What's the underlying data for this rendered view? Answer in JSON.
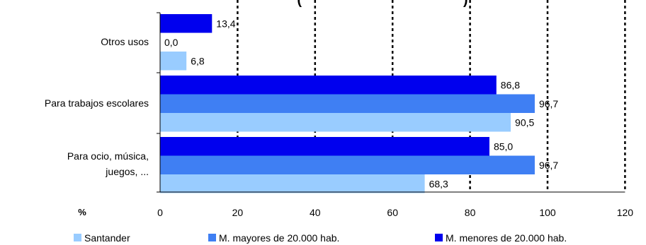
{
  "chart_data": {
    "type": "bar",
    "orientation": "horizontal",
    "title": "(                                         )",
    "categories": [
      "Otros usos",
      "Para trabajos escolares",
      "Para ocio, música, juegos, ..."
    ],
    "category_lines": [
      [
        "Otros usos"
      ],
      [
        "Para trabajos escolares"
      ],
      [
        "Para ocio, música,",
        "juegos, ..."
      ]
    ],
    "series": [
      {
        "name": "M. menores de 20.000 hab.",
        "color": "#0000ee",
        "values": [
          13.4,
          86.8,
          85.0
        ],
        "labels": [
          "13,4",
          "86,8",
          "85,0"
        ]
      },
      {
        "name": "M. mayores de 20.000 hab.",
        "color": "#3f7ff3",
        "values": [
          0.0,
          96.7,
          96.7
        ],
        "labels": [
          "0,0",
          "96,7",
          "96,7"
        ]
      },
      {
        "name": "Santander",
        "color": "#99ccff",
        "values": [
          6.8,
          90.5,
          68.3
        ],
        "labels": [
          "6,8",
          "90,5",
          "68,3"
        ]
      }
    ],
    "legend_order": [
      "Santander",
      "M. mayores de 20.000 hab.",
      "M. menores de 20.000 hab."
    ],
    "legend_position": "bottom",
    "xlabel": "%",
    "xlim": [
      0,
      120
    ],
    "xticks": [
      0,
      20,
      40,
      60,
      80,
      100,
      120
    ],
    "grid": "vertical dotted"
  }
}
